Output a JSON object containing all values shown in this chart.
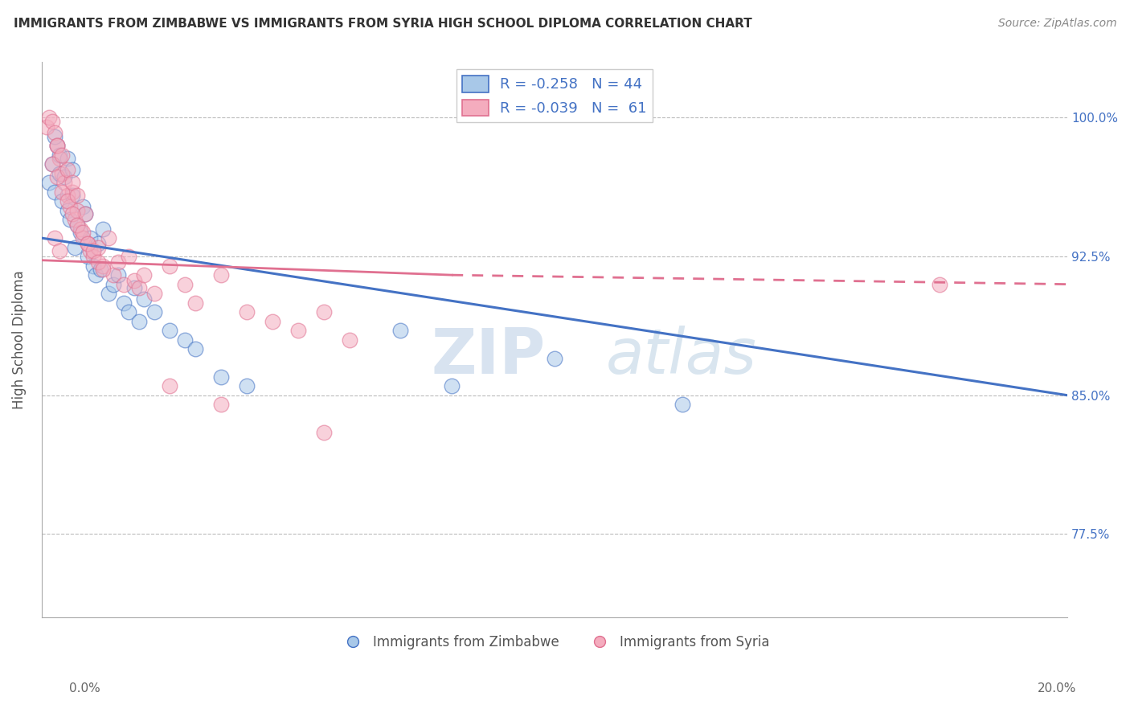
{
  "title": "IMMIGRANTS FROM ZIMBABWE VS IMMIGRANTS FROM SYRIA HIGH SCHOOL DIPLOMA CORRELATION CHART",
  "source": "Source: ZipAtlas.com",
  "ylabel": "High School Diploma",
  "yticks": [
    77.5,
    85.0,
    92.5,
    100.0
  ],
  "ytick_labels": [
    "77.5%",
    "85.0%",
    "92.5%",
    "100.0%"
  ],
  "xlim": [
    0.0,
    20.0
  ],
  "ylim": [
    73.0,
    103.0
  ],
  "legend_blue_r": "R = -0.258",
  "legend_blue_n": "N = 44",
  "legend_pink_r": "R = -0.039",
  "legend_pink_n": "N =  61",
  "blue_color": "#A8C8E8",
  "pink_color": "#F4ACBE",
  "line_blue": "#4472C4",
  "line_pink": "#E07090",
  "watermark": "ZIPatlas",
  "blue_line_x0": 0.0,
  "blue_line_y0": 93.5,
  "blue_line_x1": 20.0,
  "blue_line_y1": 85.0,
  "pink_line_x0": 0.0,
  "pink_line_y0": 92.3,
  "pink_line_x1": 8.0,
  "pink_line_y1": 91.5,
  "pink_dashed_x0": 8.0,
  "pink_dashed_y0": 91.5,
  "pink_dashed_x1": 20.0,
  "pink_dashed_y1": 91.0,
  "zimbabwe_x": [
    0.15,
    0.2,
    0.25,
    0.3,
    0.35,
    0.4,
    0.45,
    0.5,
    0.55,
    0.6,
    0.65,
    0.7,
    0.75,
    0.8,
    0.85,
    0.9,
    0.95,
    1.0,
    1.05,
    1.1,
    1.15,
    1.2,
    1.3,
    1.4,
    1.5,
    1.6,
    1.7,
    1.8,
    1.9,
    2.0,
    2.2,
    2.5,
    2.8,
    3.0,
    3.5,
    4.0,
    7.0,
    8.0,
    10.0,
    12.5,
    0.25,
    0.35,
    0.5,
    0.6
  ],
  "zimbabwe_y": [
    96.5,
    97.5,
    96.0,
    98.5,
    97.0,
    95.5,
    96.8,
    95.0,
    94.5,
    95.8,
    93.0,
    94.2,
    93.8,
    95.2,
    94.8,
    92.5,
    93.5,
    92.0,
    91.5,
    93.2,
    91.8,
    94.0,
    90.5,
    91.0,
    91.5,
    90.0,
    89.5,
    90.8,
    89.0,
    90.2,
    89.5,
    88.5,
    88.0,
    87.5,
    86.0,
    85.5,
    88.5,
    85.5,
    87.0,
    84.5,
    99.0,
    98.0,
    97.8,
    97.2
  ],
  "syria_x": [
    0.1,
    0.15,
    0.2,
    0.25,
    0.3,
    0.35,
    0.4,
    0.45,
    0.5,
    0.55,
    0.6,
    0.65,
    0.7,
    0.75,
    0.8,
    0.85,
    0.9,
    0.95,
    1.0,
    1.1,
    1.2,
    1.3,
    1.4,
    1.5,
    1.6,
    1.7,
    1.8,
    1.9,
    2.0,
    2.2,
    2.5,
    2.8,
    3.0,
    3.5,
    4.0,
    4.5,
    5.0,
    5.5,
    6.0,
    0.2,
    0.3,
    0.4,
    0.5,
    0.6,
    0.7,
    0.8,
    0.9,
    1.0,
    1.1,
    1.2,
    0.3,
    0.4,
    0.5,
    0.6,
    0.7,
    2.5,
    3.5,
    5.5,
    0.25,
    0.35,
    17.5
  ],
  "syria_y": [
    99.5,
    100.0,
    99.8,
    99.2,
    98.5,
    97.8,
    97.0,
    96.5,
    95.8,
    95.2,
    96.0,
    94.5,
    95.0,
    94.0,
    93.5,
    94.8,
    93.2,
    92.8,
    92.5,
    93.0,
    92.0,
    93.5,
    91.5,
    92.2,
    91.0,
    92.5,
    91.2,
    90.8,
    91.5,
    90.5,
    92.0,
    91.0,
    90.0,
    91.5,
    89.5,
    89.0,
    88.5,
    89.5,
    88.0,
    97.5,
    96.8,
    96.0,
    95.5,
    94.8,
    94.2,
    93.8,
    93.2,
    92.8,
    92.2,
    91.8,
    98.5,
    98.0,
    97.2,
    96.5,
    95.8,
    85.5,
    84.5,
    83.0,
    93.5,
    92.8,
    91.0
  ]
}
